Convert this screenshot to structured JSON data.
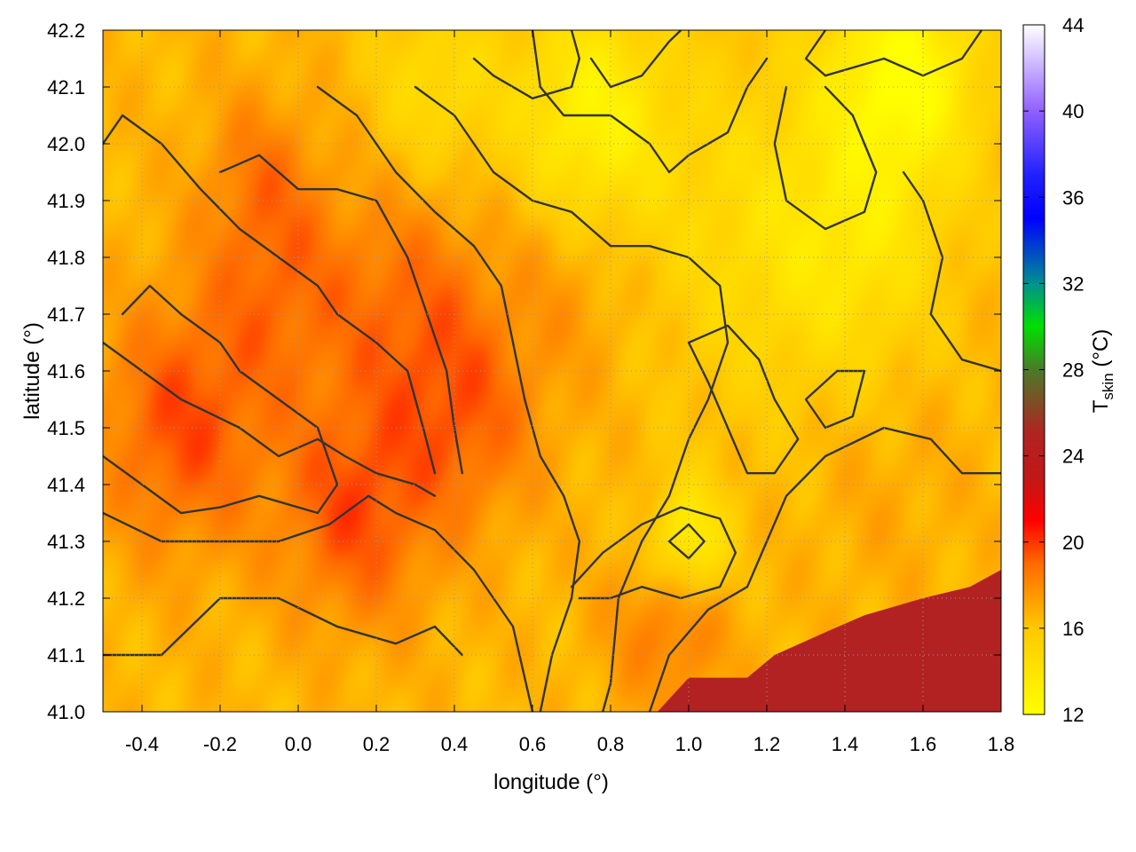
{
  "chart_data": {
    "type": "heatmap",
    "title": "",
    "xlabel": "longitude (°)",
    "ylabel": "latitude (°)",
    "xlim": [
      -0.5,
      1.8
    ],
    "ylim": [
      41.0,
      42.2
    ],
    "xticks": [
      "-0.4",
      "-0.2",
      "0.0",
      "0.2",
      "0.4",
      "0.6",
      "0.8",
      "1.0",
      "1.2",
      "1.4",
      "1.6",
      "1.8"
    ],
    "yticks": [
      "41.0",
      "41.1",
      "41.2",
      "41.3",
      "41.4",
      "41.5",
      "41.6",
      "41.7",
      "41.8",
      "41.9",
      "42.0",
      "42.1",
      "42.2"
    ],
    "grid": true,
    "colorbar": {
      "label_main": "T",
      "label_sub": "skin",
      "label_unit": " (°C)",
      "range": [
        12,
        44
      ],
      "ticks": [
        "12",
        "16",
        "20",
        "24",
        "28",
        "32",
        "36",
        "40",
        "44"
      ],
      "stops": [
        {
          "value": 12,
          "color": "#ffff00"
        },
        {
          "value": 16,
          "color": "#ffc800"
        },
        {
          "value": 19,
          "color": "#ff6a00"
        },
        {
          "value": 21,
          "color": "#ff0000"
        },
        {
          "value": 23,
          "color": "#c01818"
        },
        {
          "value": 25,
          "color": "#b22222"
        },
        {
          "value": 28,
          "color": "#4a7a28"
        },
        {
          "value": 30,
          "color": "#00e000"
        },
        {
          "value": 32,
          "color": "#009090"
        },
        {
          "value": 35,
          "color": "#0000ff"
        },
        {
          "value": 37,
          "color": "#2020ff"
        },
        {
          "value": 40,
          "color": "#9060ff"
        },
        {
          "value": 44,
          "color": "#ffffff"
        }
      ]
    },
    "sea_color": "#b22222",
    "sea_region": [
      {
        "lon": 0.92,
        "lat": 41.0
      },
      {
        "lon": 1.0,
        "lat": 41.06
      },
      {
        "lon": 1.15,
        "lat": 41.06
      },
      {
        "lon": 1.22,
        "lat": 41.1
      },
      {
        "lon": 1.35,
        "lat": 41.14
      },
      {
        "lon": 1.45,
        "lat": 41.17
      },
      {
        "lon": 1.6,
        "lat": 41.2
      },
      {
        "lon": 1.72,
        "lat": 41.22
      },
      {
        "lon": 1.8,
        "lat": 41.25
      },
      {
        "lon": 1.8,
        "lat": 41.0
      }
    ],
    "field_hotspots": [
      {
        "lon": -0.3,
        "lat": 41.5,
        "temp": 19.5,
        "radius": 0.22
      },
      {
        "lon": -0.05,
        "lat": 41.75,
        "temp": 18.5,
        "radius": 0.2
      },
      {
        "lon": 0.15,
        "lat": 41.35,
        "temp": 19.5,
        "radius": 0.2
      },
      {
        "lon": 0.3,
        "lat": 41.7,
        "temp": 18.8,
        "radius": 0.22
      },
      {
        "lon": 0.45,
        "lat": 41.5,
        "temp": 18.5,
        "radius": 0.18
      },
      {
        "lon": -0.1,
        "lat": 41.95,
        "temp": 18,
        "radius": 0.15
      },
      {
        "lon": 0.7,
        "lat": 41.75,
        "temp": 17.5,
        "radius": 0.18
      },
      {
        "lon": 0.95,
        "lat": 41.15,
        "temp": 18.5,
        "radius": 0.15
      },
      {
        "lon": 1.5,
        "lat": 41.4,
        "temp": 17,
        "radius": 0.2
      },
      {
        "lon": 1.0,
        "lat": 41.3,
        "temp": 12.8,
        "radius": 0.1
      },
      {
        "lon": 1.55,
        "lat": 42.12,
        "temp": 12.2,
        "radius": 0.2
      },
      {
        "lon": 0.75,
        "lat": 42.05,
        "temp": 13,
        "radius": 0.2
      },
      {
        "lon": 1.2,
        "lat": 41.85,
        "temp": 14.5,
        "radius": 0.3
      },
      {
        "lon": 0.35,
        "lat": 42.1,
        "temp": 14.5,
        "radius": 0.15
      },
      {
        "lon": 1.45,
        "lat": 41.8,
        "temp": 14.8,
        "radius": 0.2
      }
    ],
    "field_base_temp": 16.5,
    "contours": [
      [
        [
          -0.5,
          41.1
        ],
        [
          -0.35,
          41.1
        ],
        [
          -0.2,
          41.2
        ],
        [
          -0.05,
          41.2
        ],
        [
          0.1,
          41.15
        ],
        [
          0.25,
          41.12
        ],
        [
          0.35,
          41.15
        ],
        [
          0.42,
          41.1
        ]
      ],
      [
        [
          -0.5,
          41.35
        ],
        [
          -0.35,
          41.3
        ],
        [
          -0.2,
          41.3
        ],
        [
          -0.05,
          41.3
        ],
        [
          0.08,
          41.33
        ],
        [
          0.18,
          41.38
        ],
        [
          0.25,
          41.35
        ],
        [
          0.35,
          41.32
        ],
        [
          0.45,
          41.25
        ],
        [
          0.55,
          41.15
        ],
        [
          0.6,
          41.0
        ]
      ],
      [
        [
          -0.5,
          41.65
        ],
        [
          -0.3,
          41.55
        ],
        [
          -0.15,
          41.5
        ],
        [
          -0.05,
          41.45
        ],
        [
          0.05,
          41.48
        ],
        [
          0.12,
          41.45
        ],
        [
          0.2,
          41.42
        ],
        [
          0.3,
          41.4
        ],
        [
          0.35,
          41.38
        ]
      ],
      [
        [
          -0.5,
          41.45
        ],
        [
          -0.4,
          41.4
        ],
        [
          -0.3,
          41.35
        ],
        [
          -0.2,
          41.36
        ],
        [
          -0.1,
          41.38
        ],
        [
          0.05,
          41.35
        ],
        [
          0.1,
          41.4
        ],
        [
          0.05,
          41.5
        ],
        [
          -0.05,
          41.55
        ],
        [
          -0.15,
          41.6
        ],
        [
          -0.2,
          41.65
        ],
        [
          -0.3,
          41.7
        ],
        [
          -0.38,
          41.75
        ],
        [
          -0.45,
          41.7
        ]
      ],
      [
        [
          -0.5,
          42.0
        ],
        [
          -0.45,
          42.05
        ],
        [
          -0.35,
          42.0
        ],
        [
          -0.25,
          41.92
        ],
        [
          -0.15,
          41.85
        ],
        [
          -0.05,
          41.8
        ],
        [
          0.05,
          41.75
        ],
        [
          0.1,
          41.7
        ],
        [
          0.2,
          41.65
        ],
        [
          0.28,
          41.6
        ],
        [
          0.32,
          41.5
        ],
        [
          0.35,
          41.42
        ]
      ],
      [
        [
          -0.2,
          41.95
        ],
        [
          -0.1,
          41.98
        ],
        [
          0.0,
          41.92
        ],
        [
          0.1,
          41.92
        ],
        [
          0.2,
          41.9
        ],
        [
          0.28,
          41.8
        ],
        [
          0.33,
          41.7
        ],
        [
          0.38,
          41.6
        ],
        [
          0.4,
          41.5
        ],
        [
          0.42,
          41.42
        ]
      ],
      [
        [
          0.3,
          42.1
        ],
        [
          0.4,
          42.05
        ],
        [
          0.5,
          41.95
        ],
        [
          0.6,
          41.9
        ],
        [
          0.7,
          41.88
        ],
        [
          0.8,
          41.82
        ],
        [
          0.9,
          41.82
        ],
        [
          1.0,
          41.8
        ],
        [
          1.08,
          41.75
        ],
        [
          1.1,
          41.65
        ],
        [
          1.05,
          41.55
        ],
        [
          1.0,
          41.48
        ],
        [
          0.95,
          41.38
        ],
        [
          0.88,
          41.3
        ],
        [
          0.82,
          41.2
        ],
        [
          0.8,
          41.05
        ],
        [
          0.78,
          41.0
        ]
      ],
      [
        [
          0.05,
          42.1
        ],
        [
          0.15,
          42.05
        ],
        [
          0.25,
          41.95
        ],
        [
          0.35,
          41.88
        ],
        [
          0.45,
          41.82
        ],
        [
          0.52,
          41.75
        ],
        [
          0.55,
          41.65
        ],
        [
          0.58,
          41.55
        ],
        [
          0.62,
          41.45
        ],
        [
          0.68,
          41.38
        ],
        [
          0.72,
          41.3
        ],
        [
          0.7,
          41.2
        ],
        [
          0.65,
          41.1
        ],
        [
          0.62,
          41.0
        ]
      ],
      [
        [
          0.9,
          41.0
        ],
        [
          0.95,
          41.1
        ],
        [
          1.05,
          41.18
        ],
        [
          1.15,
          41.22
        ],
        [
          1.2,
          41.3
        ],
        [
          1.25,
          41.38
        ],
        [
          1.35,
          41.45
        ],
        [
          1.5,
          41.5
        ],
        [
          1.62,
          41.48
        ],
        [
          1.7,
          41.42
        ],
        [
          1.8,
          41.42
        ]
      ],
      [
        [
          0.7,
          41.22
        ],
        [
          0.78,
          41.28
        ],
        [
          0.88,
          41.33
        ],
        [
          0.98,
          41.36
        ],
        [
          1.08,
          41.34
        ],
        [
          1.12,
          41.28
        ],
        [
          1.08,
          41.22
        ],
        [
          0.98,
          41.2
        ],
        [
          0.88,
          41.22
        ],
        [
          0.8,
          41.2
        ],
        [
          0.72,
          41.2
        ]
      ],
      [
        [
          0.95,
          41.3
        ],
        [
          1.0,
          41.33
        ],
        [
          1.04,
          41.3
        ],
        [
          1.0,
          41.27
        ],
        [
          0.95,
          41.3
        ]
      ],
      [
        [
          0.6,
          42.2
        ],
        [
          0.62,
          42.1
        ],
        [
          0.68,
          42.05
        ],
        [
          0.8,
          42.05
        ],
        [
          0.9,
          42.0
        ],
        [
          0.95,
          41.95
        ],
        [
          1.0,
          41.98
        ],
        [
          1.1,
          42.02
        ],
        [
          1.15,
          42.1
        ],
        [
          1.2,
          42.15
        ]
      ],
      [
        [
          0.75,
          42.15
        ],
        [
          0.8,
          42.1
        ],
        [
          0.88,
          42.12
        ],
        [
          0.95,
          42.18
        ],
        [
          0.98,
          42.2
        ]
      ],
      [
        [
          0.45,
          42.15
        ],
        [
          0.5,
          42.12
        ],
        [
          0.6,
          42.08
        ],
        [
          0.7,
          42.1
        ],
        [
          0.72,
          42.15
        ],
        [
          0.7,
          42.2
        ]
      ],
      [
        [
          1.35,
          42.2
        ],
        [
          1.3,
          42.15
        ],
        [
          1.35,
          42.12
        ],
        [
          1.5,
          42.15
        ],
        [
          1.6,
          42.12
        ],
        [
          1.7,
          42.15
        ],
        [
          1.75,
          42.2
        ]
      ],
      [
        [
          1.25,
          42.1
        ],
        [
          1.22,
          42.0
        ],
        [
          1.25,
          41.9
        ],
        [
          1.35,
          41.85
        ],
        [
          1.45,
          41.88
        ],
        [
          1.48,
          41.95
        ],
        [
          1.42,
          42.05
        ],
        [
          1.35,
          42.1
        ]
      ],
      [
        [
          1.55,
          41.95
        ],
        [
          1.6,
          41.9
        ],
        [
          1.65,
          41.8
        ],
        [
          1.62,
          41.7
        ],
        [
          1.7,
          41.62
        ],
        [
          1.8,
          41.6
        ]
      ],
      [
        [
          1.3,
          41.55
        ],
        [
          1.38,
          41.6
        ],
        [
          1.45,
          41.6
        ],
        [
          1.42,
          41.52
        ],
        [
          1.35,
          41.5
        ],
        [
          1.3,
          41.55
        ]
      ],
      [
        [
          1.0,
          41.65
        ],
        [
          1.1,
          41.68
        ],
        [
          1.18,
          41.62
        ],
        [
          1.22,
          41.55
        ],
        [
          1.28,
          41.48
        ],
        [
          1.22,
          41.42
        ],
        [
          1.15,
          41.42
        ],
        [
          1.1,
          41.5
        ],
        [
          1.05,
          41.58
        ],
        [
          1.0,
          41.65
        ]
      ]
    ]
  }
}
